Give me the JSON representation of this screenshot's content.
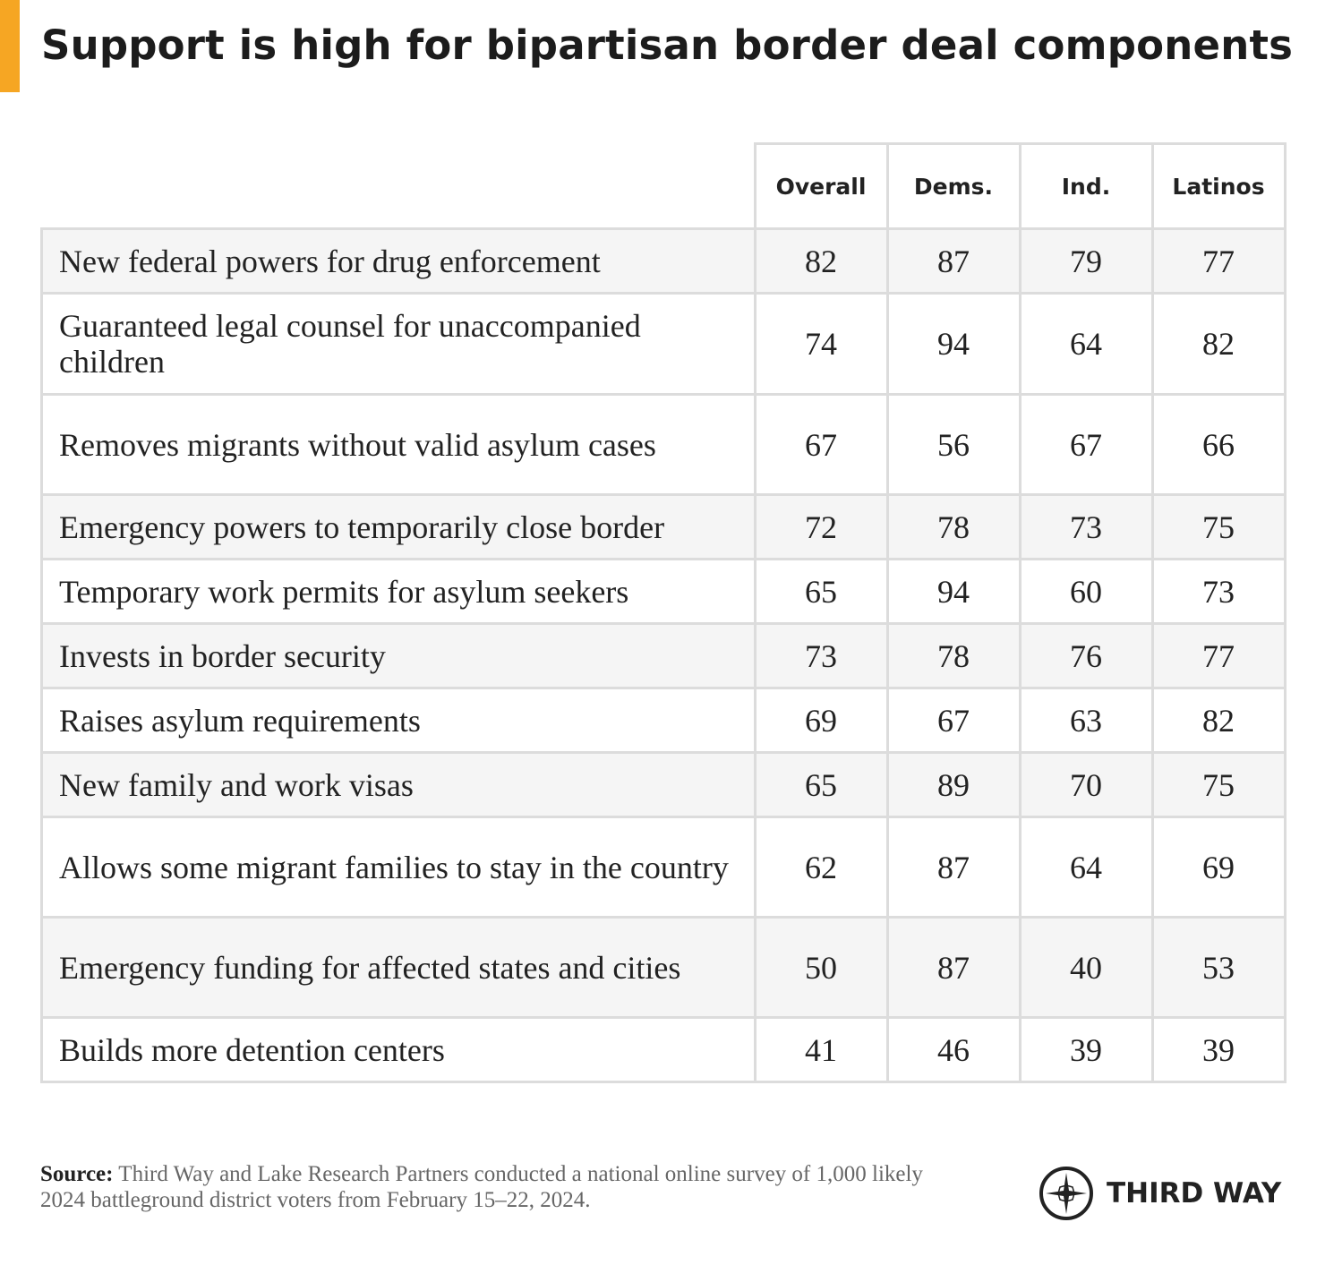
{
  "header": {
    "title": "Support is high for bipartisan border deal components"
  },
  "table": {
    "columns": [
      "Overall",
      "Dems.",
      "Ind.",
      "Latinos"
    ],
    "rows": [
      [
        "New federal powers for drug enforcement",
        "82",
        "87",
        "79",
        "77"
      ],
      [
        "Guaranteed legal counsel for unaccompanied children",
        "74",
        "94",
        "64",
        "82"
      ],
      [
        "Removes migrants without valid asylum cases",
        "67",
        "56",
        "67",
        "66"
      ],
      [
        "Emergency powers to temporarily close border",
        "72",
        "78",
        "73",
        "75"
      ],
      [
        "Temporary work permits for asylum seekers",
        "65",
        "94",
        "60",
        "73"
      ],
      [
        "Invests in border security",
        "73",
        "78",
        "76",
        "77"
      ],
      [
        "Raises asylum requirements",
        "69",
        "67",
        "63",
        "82"
      ],
      [
        "New family and work visas",
        "65",
        "89",
        "70",
        "75"
      ],
      [
        "Allows some migrant families to stay in the country",
        "62",
        "87",
        "64",
        "69"
      ],
      [
        "Emergency funding for affected states and cities",
        "50",
        "87",
        "40",
        "53"
      ],
      [
        "Builds more detention centers",
        "41",
        "46",
        "39",
        "39"
      ]
    ]
  },
  "footer": {
    "source_label": "Source:",
    "source_text": "Third Way and Lake Research Partners conducted a national online survey of 1,000 likely 2024 battleground district voters from February 15–22, 2024.",
    "logo": "THIRD WAY"
  }
}
